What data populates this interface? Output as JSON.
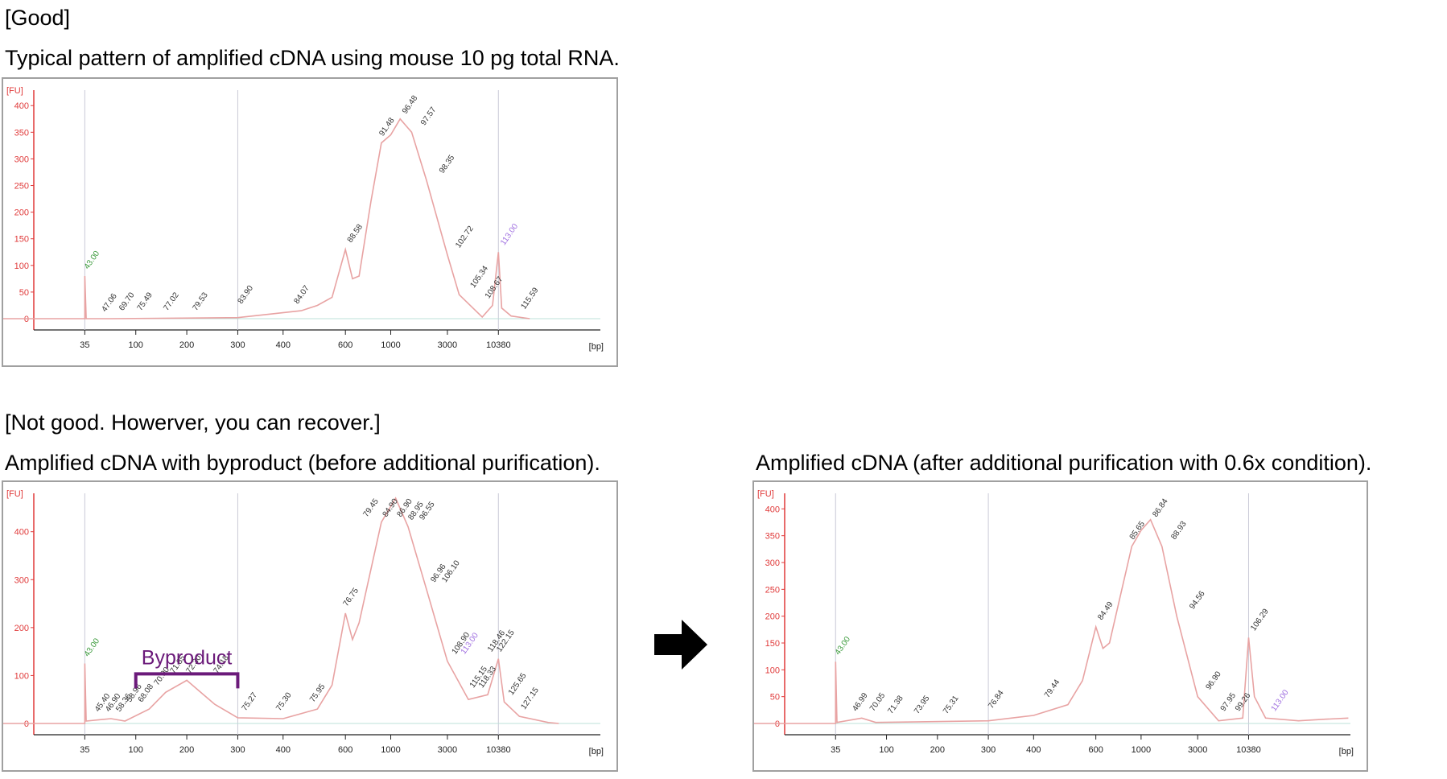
{
  "headings": {
    "good": "[Good]",
    "good_desc": "Typical pattern of amplified cDNA using mouse 10 pg total RNA.",
    "notgood": "[Not good. Howerver, you can recover.]",
    "before_desc": "Amplified cDNA with byproduct (before additional purification).",
    "after_desc": "Amplified cDNA (after additional purification with 0.6x condition)."
  },
  "colors": {
    "trace": "#e8a3a3",
    "axis": "#e03a3a",
    "ladder": "#3a9a3a",
    "marker": "#a070e0",
    "bracket": "#6b1a7a"
  },
  "chart_data": [
    {
      "type": "line",
      "title": "",
      "ylabel": "[FU]",
      "xlabel": "[bp]",
      "x_ticks": [
        "35",
        "100",
        "200",
        "300",
        "400",
        "600",
        "1000",
        "3000",
        "10380"
      ],
      "y_ticks": [
        "0",
        "50",
        "100",
        "150",
        "200",
        "250",
        "300",
        "350",
        "400"
      ],
      "ylim": [
        0,
        420
      ],
      "series": [
        {
          "values": [
            [
              35,
              0
            ],
            [
              35,
              80
            ],
            [
              36,
              0
            ],
            [
              60,
              0
            ],
            [
              300,
              2
            ],
            [
              450,
              15
            ],
            [
              500,
              25
            ],
            [
              550,
              40
            ],
            [
              600,
              130
            ],
            [
              650,
              75
            ],
            [
              700,
              80
            ],
            [
              800,
              220
            ],
            [
              900,
              330
            ],
            [
              1000,
              345
            ],
            [
              1200,
              375
            ],
            [
              1500,
              350
            ],
            [
              2000,
              260
            ],
            [
              3000,
              120
            ],
            [
              4000,
              45
            ],
            [
              7000,
              3
            ],
            [
              9000,
              25
            ],
            [
              10380,
              125
            ],
            [
              11000,
              20
            ],
            [
              13000,
              5
            ],
            [
              18000,
              0
            ]
          ]
        }
      ],
      "peak_labels": [
        "43.00",
        "47.06",
        "69.70",
        "75.49",
        "77.02",
        "79.53",
        "83.90",
        "84.07",
        "88.58",
        "91.48",
        "96.48",
        "97.57",
        "98.35",
        "102.72",
        "105.34",
        "108.67",
        "113.00",
        "115.59"
      ],
      "marker_label": "113.00",
      "ladder_label": "43.00"
    },
    {
      "type": "line",
      "title": "",
      "ylabel": "[FU]",
      "xlabel": "[bp]",
      "x_ticks": [
        "35",
        "100",
        "200",
        "300",
        "400",
        "600",
        "1000",
        "3000",
        "10380"
      ],
      "y_ticks": [
        "0",
        "100",
        "200",
        "300",
        "400"
      ],
      "ylim": [
        0,
        470
      ],
      "series": [
        {
          "values": [
            [
              35,
              0
            ],
            [
              35,
              125
            ],
            [
              36,
              5
            ],
            [
              60,
              10
            ],
            [
              80,
              5
            ],
            [
              120,
              30
            ],
            [
              150,
              65
            ],
            [
              200,
              90
            ],
            [
              250,
              40
            ],
            [
              300,
              12
            ],
            [
              400,
              10
            ],
            [
              500,
              30
            ],
            [
              550,
              80
            ],
            [
              600,
              230
            ],
            [
              650,
              175
            ],
            [
              700,
              210
            ],
            [
              900,
              420
            ],
            [
              1100,
              470
            ],
            [
              1400,
              410
            ],
            [
              2000,
              280
            ],
            [
              3000,
              130
            ],
            [
              5000,
              50
            ],
            [
              8000,
              60
            ],
            [
              10380,
              135
            ],
            [
              11500,
              45
            ],
            [
              15000,
              15
            ],
            [
              25000,
              2
            ],
            [
              30000,
              0
            ]
          ]
        }
      ],
      "peak_labels": [
        "43.00",
        "45.40",
        "46.90",
        "58.36",
        "58.96",
        "68.08",
        "70.90",
        "71.85",
        "72.30",
        "74.18",
        "75.27",
        "75.30",
        "75.95",
        "76.75",
        "79.45",
        "84.90",
        "86.90",
        "88.95",
        "96.55",
        "96.96",
        "106.10",
        "108.90",
        "113.00",
        "115.15",
        "118.33",
        "118.46",
        "122.15",
        "125.65",
        "127.15"
      ],
      "marker_label": "113.00",
      "ladder_label": "43.00",
      "annotation": "Byproduct"
    },
    {
      "type": "line",
      "title": "",
      "ylabel": "[FU]",
      "xlabel": "[bp]",
      "x_ticks": [
        "35",
        "100",
        "200",
        "300",
        "400",
        "600",
        "1000",
        "3000",
        "10380"
      ],
      "y_ticks": [
        "0",
        "50",
        "100",
        "150",
        "200",
        "250",
        "300",
        "350",
        "400"
      ],
      "ylim": [
        0,
        420
      ],
      "series": [
        {
          "values": [
            [
              35,
              0
            ],
            [
              35,
              115
            ],
            [
              36,
              2
            ],
            [
              60,
              10
            ],
            [
              80,
              2
            ],
            [
              300,
              5
            ],
            [
              400,
              15
            ],
            [
              500,
              35
            ],
            [
              550,
              80
            ],
            [
              600,
              180
            ],
            [
              650,
              140
            ],
            [
              700,
              150
            ],
            [
              900,
              330
            ],
            [
              1000,
              360
            ],
            [
              1200,
              380
            ],
            [
              1500,
              330
            ],
            [
              2000,
              200
            ],
            [
              3000,
              50
            ],
            [
              5000,
              5
            ],
            [
              9000,
              10
            ],
            [
              10380,
              160
            ],
            [
              11500,
              50
            ],
            [
              14000,
              10
            ],
            [
              25000,
              5
            ],
            [
              40000,
              8
            ],
            [
              60000,
              10
            ]
          ]
        }
      ],
      "peak_labels": [
        "43.00",
        "46.99",
        "70.05",
        "71.38",
        "73.95",
        "75.31",
        "76.84",
        "79.44",
        "84.49",
        "85.65",
        "86.84",
        "88.93",
        "94.56",
        "96.90",
        "97.95",
        "99.26",
        "106.29",
        "113.00"
      ],
      "marker_label": "113.00",
      "ladder_label": "43.00"
    }
  ],
  "arrow": "right-arrow"
}
